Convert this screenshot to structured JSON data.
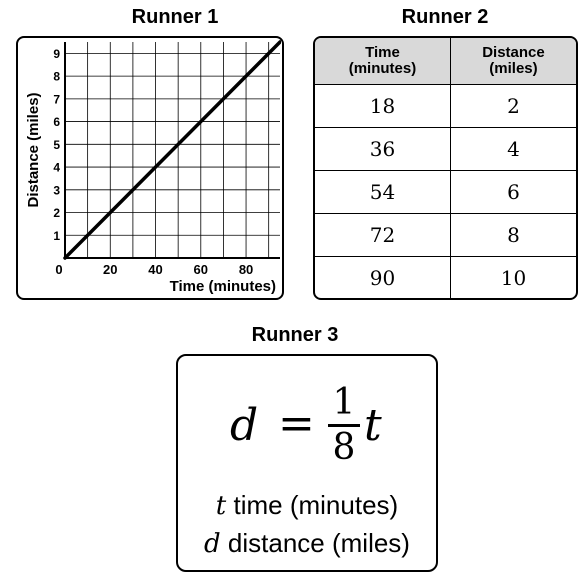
{
  "runner1": {
    "title": "Runner 1"
  },
  "runner2": {
    "title": "Runner 2",
    "header": [
      "Time\n(minutes)",
      "Distance\n(miles)"
    ],
    "header_time_l1": "Time",
    "header_time_l2": "(minutes)",
    "header_dist_l1": "Distance",
    "header_dist_l2": "(miles)",
    "rows": [
      [
        "18",
        "2"
      ],
      [
        "36",
        "4"
      ],
      [
        "54",
        "6"
      ],
      [
        "72",
        "8"
      ],
      [
        "90",
        "10"
      ]
    ]
  },
  "runner3": {
    "title": "Runner 3",
    "eq_lhs": "d",
    "eq_sign": "=",
    "eq_num": "1",
    "eq_den": "8",
    "eq_var": "t",
    "legend_t_var": "t",
    "legend_t_text": "time (minutes)",
    "legend_d_var": "d",
    "legend_d_text": "distance (miles)"
  },
  "chart_data": {
    "type": "line",
    "title": "Runner 1",
    "xlabel": "Time (minutes)",
    "ylabel": "Distance (miles)",
    "xlim": [
      0,
      95
    ],
    "ylim": [
      0,
      9.5
    ],
    "x_ticks": [
      0,
      20,
      40,
      60,
      80
    ],
    "y_ticks": [
      1,
      2,
      3,
      4,
      5,
      6,
      7,
      8,
      9
    ],
    "x_tick_labels": [
      "0",
      "20",
      "40",
      "60",
      "80"
    ],
    "y_tick_labels": [
      "1",
      "2",
      "3",
      "4",
      "5",
      "6",
      "7",
      "8",
      "9"
    ],
    "grid": true,
    "series": [
      {
        "x": [
          0,
          95
        ],
        "y": [
          0,
          9.5
        ]
      }
    ]
  }
}
